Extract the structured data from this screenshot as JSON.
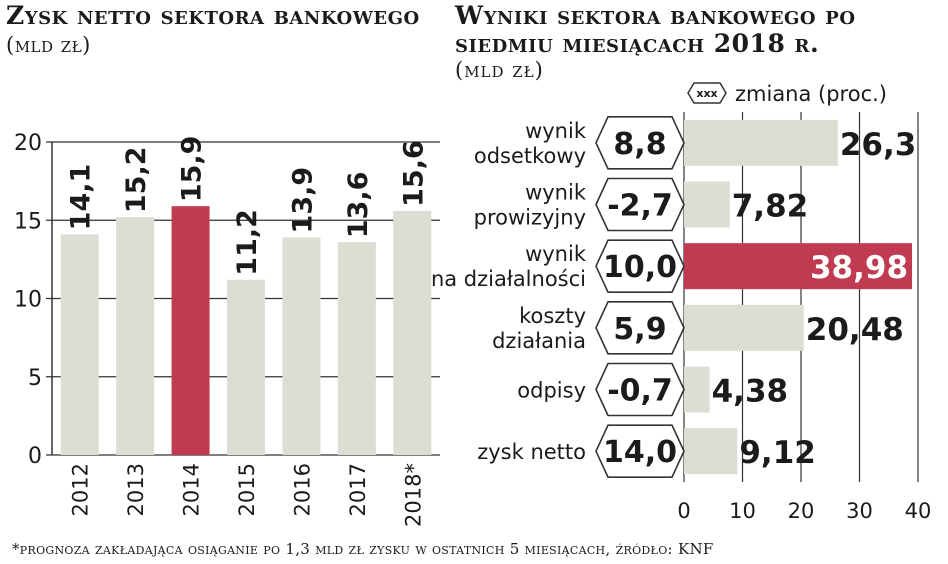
{
  "left": {
    "title": "Zysk netto sektora bankowego",
    "unit": "(mld zł)"
  },
  "right": {
    "title": "Wyniki sektora bankowego po siedmiu miesiącach 2018 r.",
    "unit": "(mld zł)",
    "legend_badge": "xxx",
    "legend_text": "zmiana (proc.)"
  },
  "footnote": "*prognoza zakładająca osiąganie po 1,3 mld zł zysku w ostatnich 5 miesiącach, źródło: KNF",
  "colors": {
    "bar": "#deddd4",
    "highlight": "#c03b52",
    "axis": "#333333",
    "text": "#1b1b1b"
  },
  "chart_data": [
    {
      "type": "bar",
      "title": "Zysk netto sektora bankowego",
      "categories": [
        "2012",
        "2013",
        "2014",
        "2015",
        "2016",
        "2017",
        "2018*"
      ],
      "values": [
        14.1,
        15.2,
        15.9,
        11.2,
        13.9,
        13.6,
        15.6
      ],
      "value_labels": [
        "14,1",
        "15,2",
        "15,9",
        "11,2",
        "13,9",
        "13,6",
        "15,6"
      ],
      "highlight_category": "2014",
      "ylim": [
        0,
        20
      ],
      "yticks": [
        0,
        5,
        10,
        15,
        20
      ],
      "grid": true
    },
    {
      "type": "bar",
      "orientation": "horizontal",
      "title": "Wyniki sektora bankowego po siedmiu miesiącach 2018 r.",
      "categories": [
        [
          "wynik",
          "odsetkowy"
        ],
        [
          "wynik",
          "prowizyjny"
        ],
        [
          "wynik",
          "na działalności"
        ],
        [
          "koszty",
          "działania"
        ],
        [
          "odpisy"
        ],
        [
          "zysk netto"
        ]
      ],
      "amounts": [
        "8,8",
        "-2,7",
        "10,0",
        "5,9",
        "-0,7",
        "14,0"
      ],
      "values": [
        26.3,
        7.82,
        38.98,
        20.48,
        4.38,
        9.12
      ],
      "value_labels": [
        "26,3",
        "7,82",
        "38,98",
        "20,48",
        "4,38",
        "9,12"
      ],
      "highlight_index": 2,
      "xlim": [
        0,
        40
      ],
      "xticks": [
        0,
        10,
        20,
        30,
        40
      ],
      "grid": true
    }
  ]
}
